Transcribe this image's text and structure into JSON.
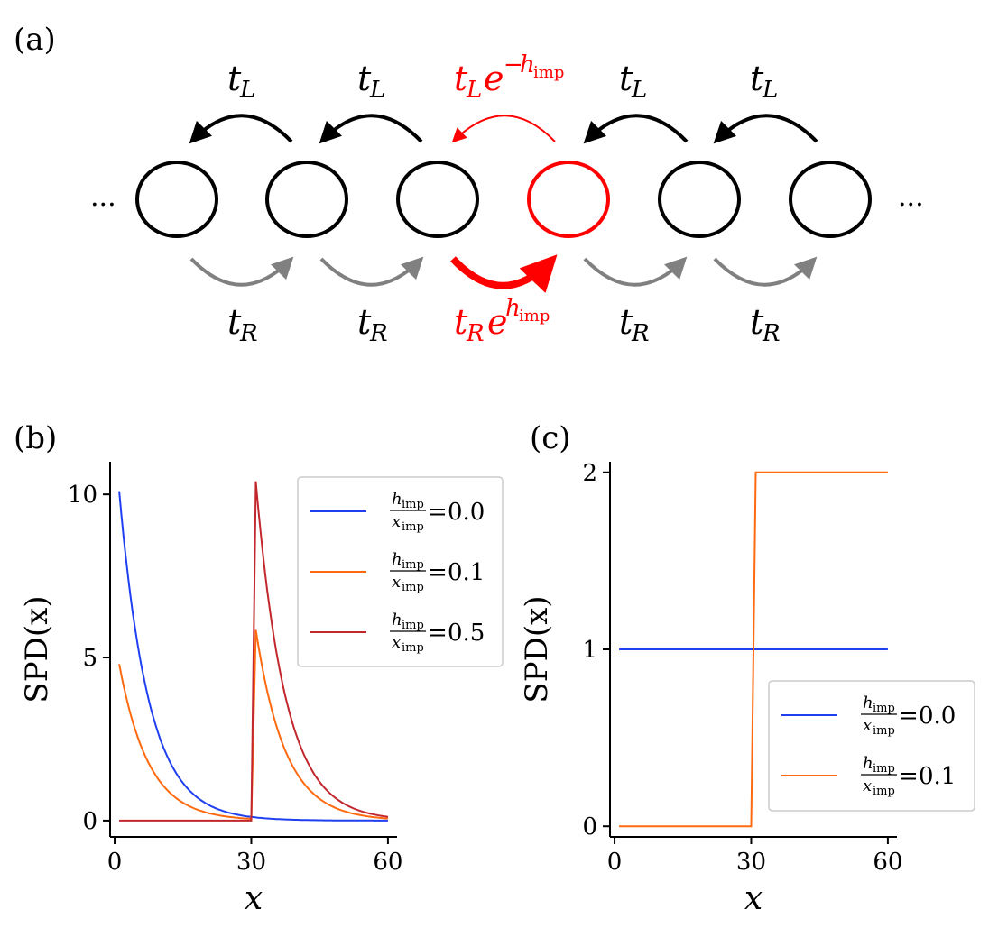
{
  "panel_a": {
    "label": "(a)",
    "ellipsis": "...",
    "left_hop": {
      "t": "t",
      "sub": "L"
    },
    "right_hop": {
      "t": "t",
      "sub": "R"
    },
    "imp_left": {
      "t": "t",
      "sub": "L",
      "e": "e",
      "exp_sign": "−",
      "exp_h": "h",
      "exp_sub": "imp"
    },
    "imp_right": {
      "t": "t",
      "sub": "R",
      "e": "e",
      "exp_h": "h",
      "exp_sub": "imp"
    },
    "num_sites": 6,
    "impurity_site_index": 3,
    "colors": {
      "normal": "#000000",
      "impurity": "#ff0000",
      "right_arrow": "#808080"
    }
  },
  "panel_b": {
    "label": "(b)",
    "chart_data": {
      "type": "line",
      "title": "",
      "xlabel": "x",
      "ylabel": "SPD(x)",
      "xlim": [
        -1,
        62
      ],
      "ylim": [
        -0.5,
        11
      ],
      "xticks": [
        "0",
        "30",
        "60"
      ],
      "yticks": [
        "0",
        "5",
        "10"
      ],
      "x_imp": 30,
      "series": [
        {
          "name": "h_imp/x_imp=0.0",
          "ratio": "0.0",
          "color": "#1f3ff0",
          "start": 10.1,
          "decay": 0.155,
          "jump_peak": 0
        },
        {
          "name": "h_imp/x_imp=0.1",
          "ratio": "0.1",
          "color": "#ff6a10",
          "start": 4.8,
          "decay": 0.155,
          "jump_peak": 5.8
        },
        {
          "name": "h_imp/x_imp=0.5",
          "ratio": "0.5",
          "color": "#c1272d",
          "start": 0,
          "decay": 0.155,
          "jump_peak": 10.4
        }
      ],
      "legend_position": "top-right"
    }
  },
  "panel_c": {
    "label": "(c)",
    "chart_data": {
      "type": "line",
      "title": "",
      "xlabel": "x",
      "ylabel": "SPD(x)",
      "xlim": [
        -1,
        62
      ],
      "ylim": [
        -0.06,
        2.06
      ],
      "xticks": [
        "0",
        "30",
        "60"
      ],
      "yticks": [
        "0",
        "1",
        "2"
      ],
      "x_imp": 30,
      "series": [
        {
          "name": "h_imp/x_imp=0.0",
          "ratio": "0.0",
          "color": "#1f3ff0",
          "x": [
            1,
            60
          ],
          "y": [
            1,
            1
          ]
        },
        {
          "name": "h_imp/x_imp=0.1",
          "ratio": "0.1",
          "color": "#ff6a10",
          "x": [
            1,
            30,
            31,
            60
          ],
          "y": [
            0,
            0,
            2,
            2
          ]
        }
      ],
      "legend_position": "bottom-right"
    }
  },
  "legend_text": {
    "h": "h",
    "x": "x",
    "sub": "imp",
    "eq": "="
  }
}
